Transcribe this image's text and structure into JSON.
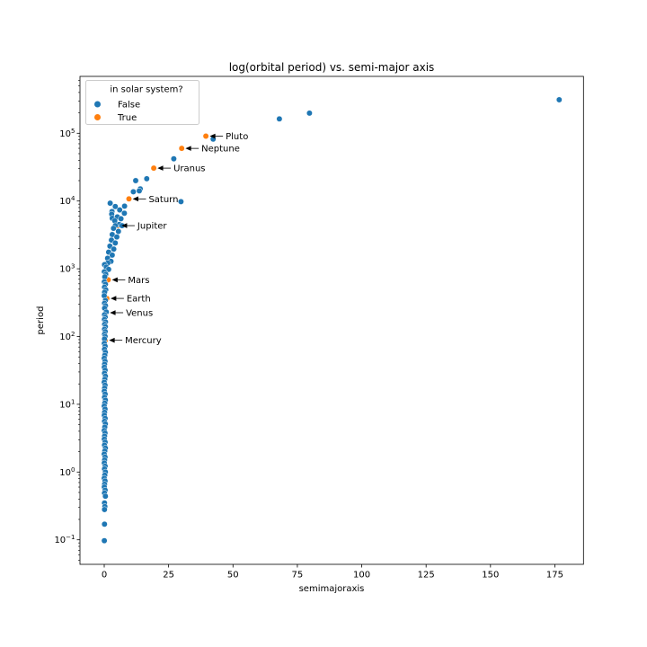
{
  "figure": {
    "background": "#ffffff"
  },
  "chart_data": {
    "type": "scatter",
    "title": "log(orbital period) vs. semi-major axis",
    "xlabel": "semimajoraxis",
    "ylabel": "period",
    "x_scale": "linear",
    "y_scale": "log",
    "xlim": [
      -9.4,
      186.1
    ],
    "ylim_log10": [
      -1.36,
      5.84
    ],
    "x_ticks": [
      0,
      25,
      50,
      75,
      100,
      125,
      150,
      175
    ],
    "y_tick_exponents": [
      5,
      4,
      3,
      2,
      1,
      0,
      -1
    ],
    "grid": false,
    "legend": {
      "title": "in solar system?",
      "position": "upper left",
      "items": [
        {
          "label": "False",
          "color": "#1f77b4"
        },
        {
          "label": "True",
          "color": "#ff7f0e"
        }
      ]
    },
    "series": [
      {
        "name": "True",
        "color": "#ff7f0e",
        "points": [
          {
            "label": "Mercury",
            "a": 0.387,
            "period": 88
          },
          {
            "label": "Venus",
            "a": 0.723,
            "period": 224.7
          },
          {
            "label": "Earth",
            "a": 1.0,
            "period": 365.26
          },
          {
            "label": "Mars",
            "a": 1.524,
            "period": 687
          },
          {
            "label": "Jupiter",
            "a": 5.203,
            "period": 4331
          },
          {
            "label": "Saturn",
            "a": 9.58,
            "period": 10747
          },
          {
            "label": "Uranus",
            "a": 19.22,
            "period": 30589
          },
          {
            "label": "Neptune",
            "a": 30.07,
            "period": 59800
          },
          {
            "label": "Pluto",
            "a": 39.48,
            "period": 90560
          }
        ]
      },
      {
        "name": "False",
        "color": "#1f77b4",
        "points": [
          [
            176.7,
            312000
          ],
          [
            79.7,
            198000
          ],
          [
            68.0,
            163000
          ],
          [
            42.3,
            81900
          ],
          [
            27.0,
            42000
          ],
          [
            16.5,
            21300
          ],
          [
            12.2,
            20000
          ],
          [
            14.0,
            15100
          ],
          [
            13.6,
            14100
          ],
          [
            11.3,
            13700
          ],
          [
            29.8,
            9800
          ],
          [
            2.3,
            9300
          ],
          [
            7.9,
            8400
          ],
          [
            4.3,
            8300
          ],
          [
            6.0,
            7400
          ],
          [
            3.0,
            7000
          ],
          [
            7.8,
            6600
          ],
          [
            2.9,
            6400
          ],
          [
            3.1,
            5570
          ],
          [
            5.1,
            5820
          ],
          [
            6.5,
            5480
          ],
          [
            4.1,
            5100
          ],
          [
            5.8,
            4500
          ],
          [
            4.3,
            4330
          ],
          [
            6.9,
            4330
          ],
          [
            3.6,
            3950
          ],
          [
            5.5,
            3560
          ],
          [
            3.1,
            3200
          ],
          [
            4.9,
            2950
          ],
          [
            2.8,
            2650
          ],
          [
            4.3,
            2400
          ],
          [
            2.2,
            2160
          ],
          [
            3.7,
            1950
          ],
          [
            1.7,
            1760
          ],
          [
            3.1,
            1590
          ],
          [
            1.3,
            1430
          ],
          [
            2.6,
            1290
          ],
          [
            1.4,
            1220
          ],
          [
            0.1,
            1150
          ],
          [
            0.8,
            1060
          ],
          [
            1.7,
            980
          ],
          [
            0.05,
            905
          ],
          [
            0.6,
            830
          ],
          [
            0.2,
            760
          ],
          [
            0.05,
            640
          ],
          [
            0.5,
            590
          ],
          [
            0.1,
            535
          ],
          [
            0.6,
            490
          ],
          [
            0.15,
            450
          ],
          [
            0.0,
            400
          ],
          [
            0.45,
            340
          ],
          [
            0.1,
            310
          ],
          [
            0.5,
            285
          ],
          [
            0.15,
            262
          ],
          [
            0.8,
            230
          ],
          [
            0.1,
            210
          ],
          [
            0.4,
            193
          ],
          [
            0.08,
            178
          ],
          [
            0.5,
            164
          ],
          [
            0.15,
            151
          ],
          [
            0.45,
            139
          ],
          [
            0.1,
            128
          ],
          [
            0.4,
            118
          ],
          [
            0.1,
            108
          ],
          [
            0.35,
            100
          ],
          [
            0.12,
            92
          ],
          [
            0.05,
            79.4
          ],
          [
            0.35,
            71.8
          ],
          [
            0.1,
            64.8
          ],
          [
            0.45,
            58.5
          ],
          [
            0.2,
            52.9
          ],
          [
            0.0,
            47.8
          ],
          [
            0.3,
            43.1
          ],
          [
            0.15,
            39.0
          ],
          [
            0.05,
            35.2
          ],
          [
            0.35,
            31.8
          ],
          [
            0.1,
            28.7
          ],
          [
            0.45,
            25.9
          ],
          [
            0.2,
            23.4
          ],
          [
            0.0,
            21.1
          ],
          [
            0.3,
            19.1
          ],
          [
            0.15,
            17.3
          ],
          [
            0.05,
            15.6
          ],
          [
            0.35,
            14.1
          ],
          [
            0.1,
            12.7
          ],
          [
            0.45,
            11.5
          ],
          [
            0.2,
            10.4
          ],
          [
            0.0,
            9.4
          ],
          [
            0.3,
            8.5
          ],
          [
            0.15,
            7.6
          ],
          [
            0.05,
            6.9
          ],
          [
            0.35,
            6.2
          ],
          [
            0.1,
            5.6
          ],
          [
            0.45,
            5.1
          ],
          [
            0.2,
            4.6
          ],
          [
            0.0,
            4.1
          ],
          [
            0.3,
            3.75
          ],
          [
            0.15,
            3.39
          ],
          [
            0.05,
            3.06
          ],
          [
            0.35,
            2.76
          ],
          [
            0.1,
            2.5
          ],
          [
            0.45,
            2.25
          ],
          [
            0.2,
            2.04
          ],
          [
            0.0,
            1.84
          ],
          [
            0.3,
            1.66
          ],
          [
            0.15,
            1.5
          ],
          [
            0.05,
            1.36
          ],
          [
            0.35,
            1.22
          ],
          [
            0.1,
            1.11
          ],
          [
            0.45,
            1.0
          ],
          [
            0.2,
            0.9
          ],
          [
            0.0,
            0.81
          ],
          [
            0.3,
            0.74
          ],
          [
            0.15,
            0.66
          ],
          [
            0.05,
            0.6
          ],
          [
            0.35,
            0.54
          ],
          [
            0.1,
            0.49
          ],
          [
            0.45,
            0.44
          ],
          [
            0.1,
            0.35
          ],
          [
            0.25,
            0.31
          ],
          [
            0.1,
            0.28
          ],
          [
            0.1,
            0.17
          ],
          [
            0.05,
            0.097
          ]
        ]
      }
    ],
    "annotations": [
      {
        "label": "Pluto",
        "a": 39.48,
        "period": 90560
      },
      {
        "label": "Neptune",
        "a": 30.07,
        "period": 59800
      },
      {
        "label": "Uranus",
        "a": 19.22,
        "period": 30589
      },
      {
        "label": "Saturn",
        "a": 9.58,
        "period": 10747
      },
      {
        "label": "Jupiter",
        "a": 5.203,
        "period": 4331
      },
      {
        "label": "Mars",
        "a": 1.524,
        "period": 687
      },
      {
        "label": "Earth",
        "a": 1.0,
        "period": 365.26
      },
      {
        "label": "Venus",
        "a": 0.723,
        "period": 224.7
      },
      {
        "label": "Mercury",
        "a": 0.387,
        "period": 88
      }
    ]
  }
}
